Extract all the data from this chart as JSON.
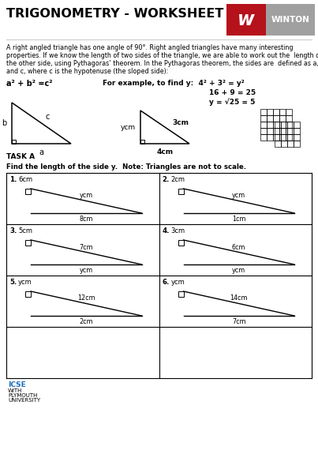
{
  "title": "TRIGONOMETRY - WORKSHEET",
  "bg_color": "#ffffff",
  "title_color": "#000000",
  "title_fontsize": 11.5,
  "intro_line1": "A right angled triangle has one angle of 90°. Right angled triangles have many interesting",
  "intro_line2": "properties. If we know the length of two sides of the triangle, we are able to work out the  length of",
  "intro_line3": "the other side, using Pythagoras’ theorem. In the Pythagoras theorem, the sides are  defined as a, b",
  "intro_line4": "and c, where c is the hypotenuse (the sloped side):",
  "formula": "a² + b² =c²",
  "example_intro": "For example, to find y:  4² + 3² = y²",
  "calc1": "16 + 9 = 25",
  "calc2": "y = √25 = 5",
  "task_a_label": "TASK A",
  "find_label": "Find the length of the side y.  Note: Triangles are not to scale.",
  "problems": [
    {
      "num": "1.",
      "vert_label": "6cm",
      "hyp_label": "ycm",
      "base_label": "8cm",
      "hyp_is_unknown": true
    },
    {
      "num": "2.",
      "vert_label": "2cm",
      "hyp_label": "ycm",
      "base_label": "1cm",
      "hyp_is_unknown": true
    },
    {
      "num": "3.",
      "vert_label": "5cm",
      "hyp_label": "7cm",
      "base_label": "ycm",
      "hyp_is_unknown": false
    },
    {
      "num": "4.",
      "vert_label": "3cm",
      "hyp_label": "6cm",
      "base_label": "ycm",
      "hyp_is_unknown": false
    },
    {
      "num": "5.",
      "vert_label": "ycm",
      "hyp_label": "12cm",
      "base_label": "2cm",
      "hyp_is_unknown": true
    },
    {
      "num": "6.",
      "vert_label": "ycm",
      "hyp_label": "14cm",
      "base_label": "7cm",
      "hyp_is_unknown": true
    }
  ],
  "winton_red": "#b5121b",
  "winton_gray": "#a0a0a0",
  "logo_blue": "#1a6fba",
  "grid_color": "#000000",
  "text_color": "#000000"
}
